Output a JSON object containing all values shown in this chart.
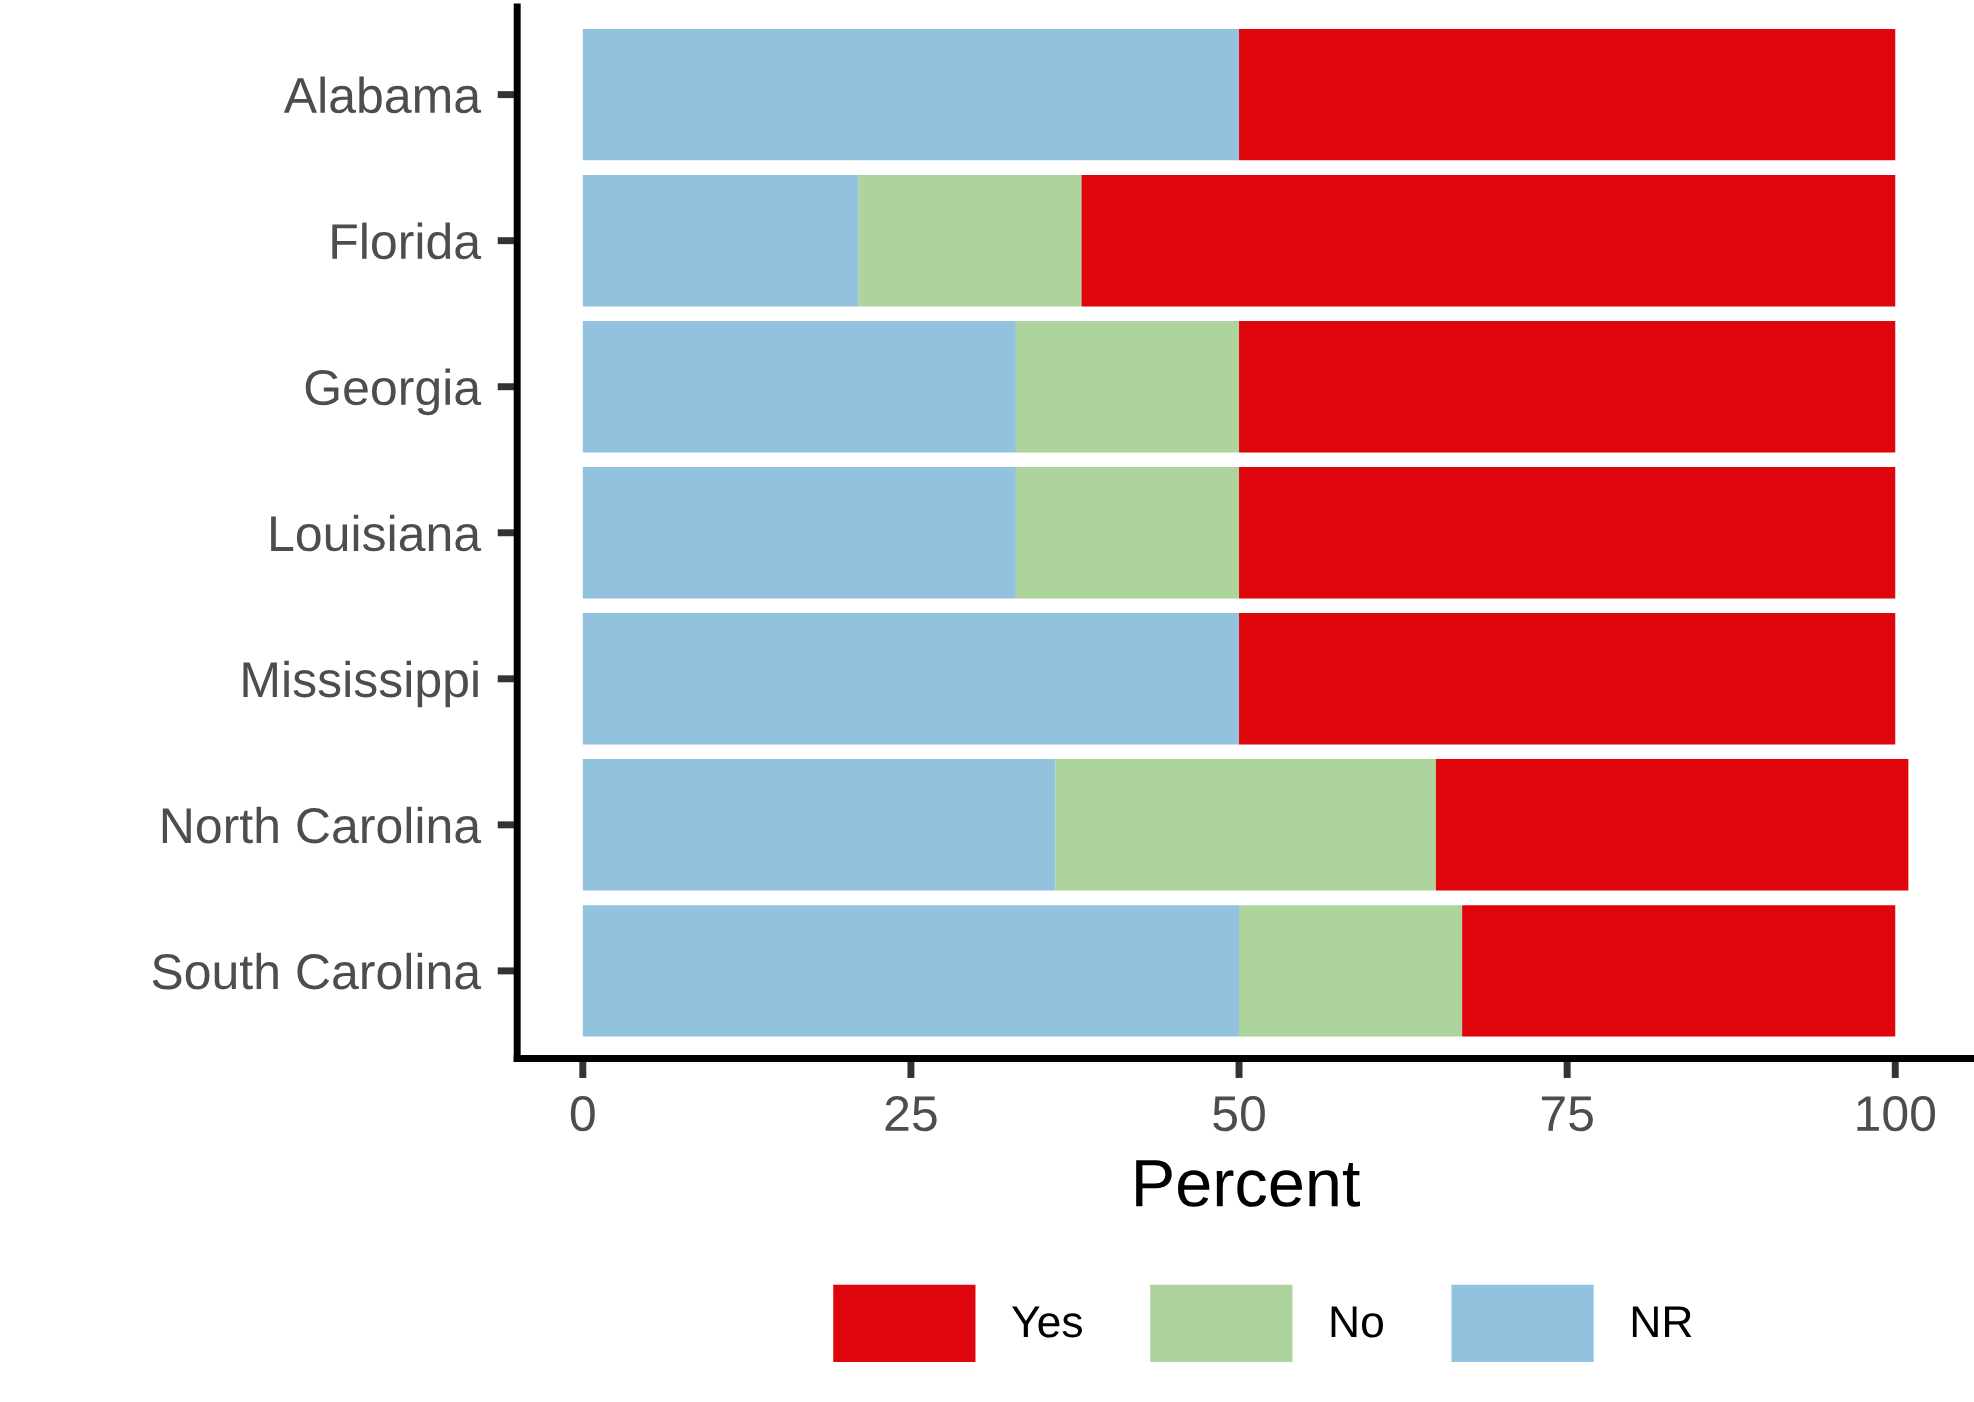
{
  "chart_data": {
    "type": "bar",
    "orientation": "horizontal",
    "stacked": true,
    "categories": [
      "Alabama",
      "Florida",
      "Georgia",
      "Louisiana",
      "Mississippi",
      "North Carolina",
      "South Carolina"
    ],
    "series": [
      {
        "name": "NR",
        "color": "#92c2de",
        "values": [
          50,
          21,
          33,
          33,
          50,
          36,
          50
        ]
      },
      {
        "name": "No",
        "color": "#acd49c",
        "values": [
          null,
          17,
          17,
          17,
          null,
          29,
          17
        ]
      },
      {
        "name": "Yes",
        "color": "#de050c",
        "values": [
          50,
          62,
          50,
          50,
          50,
          36,
          33
        ]
      }
    ],
    "xlabel": "Percent",
    "xlim": [
      -5,
      106
    ],
    "xticks": [
      0,
      25,
      50,
      75,
      100
    ],
    "grid": false,
    "legend": "bottom"
  }
}
